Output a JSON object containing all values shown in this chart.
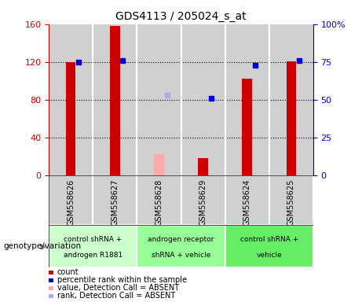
{
  "title": "GDS4113 / 205024_s_at",
  "samples": [
    "GSM558626",
    "GSM558627",
    "GSM558628",
    "GSM558629",
    "GSM558624",
    "GSM558625"
  ],
  "count_values": [
    120,
    158,
    null,
    18,
    102,
    121
  ],
  "count_absent_values": [
    null,
    null,
    22,
    null,
    null,
    null
  ],
  "percentile_values": [
    75,
    76,
    null,
    51,
    73,
    76
  ],
  "percentile_absent_values": [
    null,
    null,
    53,
    null,
    null,
    null
  ],
  "count_color": "#cc0000",
  "count_absent_color": "#ffaaaa",
  "percentile_color": "#0000cc",
  "percentile_absent_color": "#aaaaee",
  "col_bg_color": "#d0d0d0",
  "ylim_left": [
    0,
    160
  ],
  "ylim_right": [
    0,
    100
  ],
  "yticks_left": [
    0,
    40,
    80,
    120,
    160
  ],
  "yticks_right": [
    0,
    25,
    50,
    75,
    100
  ],
  "ytick_labels_right": [
    "0",
    "25",
    "50",
    "75",
    "100%"
  ],
  "group_info": [
    {
      "xmin": 0,
      "xmax": 2,
      "color": "#ccffcc",
      "line1": "control shRNA +",
      "line2": "androgen R1881"
    },
    {
      "xmin": 2,
      "xmax": 4,
      "color": "#99ff99",
      "line1": "androgen receptor",
      "line2": "shRNA + vehicle"
    },
    {
      "xmin": 4,
      "xmax": 6,
      "color": "#66ee66",
      "line1": "control shRNA +",
      "line2": "vehicle"
    }
  ],
  "genotype_label": "genotype/variation",
  "legend_items": [
    {
      "color": "#cc0000",
      "label": "count"
    },
    {
      "color": "#0000cc",
      "label": "percentile rank within the sample"
    },
    {
      "color": "#ffaaaa",
      "label": "value, Detection Call = ABSENT"
    },
    {
      "color": "#aaaaee",
      "label": "rank, Detection Call = ABSENT"
    }
  ]
}
